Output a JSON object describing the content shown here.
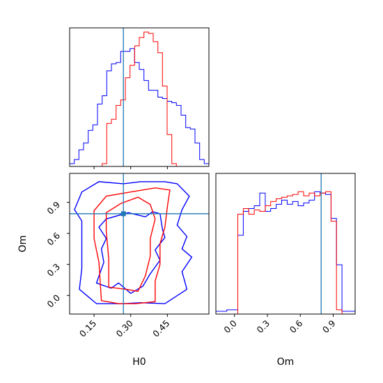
{
  "chart_data": {
    "type": "corner",
    "parameters": [
      "H0",
      "Om"
    ],
    "truth": {
      "H0": 0.27,
      "Om": 0.79,
      "color": "#1f77b4"
    },
    "series": [
      {
        "color": "#0000ff"
      },
      {
        "color": "#ff0000"
      }
    ],
    "panels": [
      {
        "id": "H0-marginal",
        "type": "histogram",
        "xlim": [
          0.05,
          0.62
        ],
        "xticks": [
          0.15,
          0.3,
          0.45
        ],
        "bin_edges": [
          0.05,
          0.069,
          0.088,
          0.107,
          0.126,
          0.145,
          0.164,
          0.183,
          0.202,
          0.221,
          0.24,
          0.259,
          0.278,
          0.297,
          0.316,
          0.335,
          0.354,
          0.373,
          0.392,
          0.411,
          0.43,
          0.449,
          0.468,
          0.487,
          0.506,
          0.525,
          0.544,
          0.563,
          0.582,
          0.601,
          0.62
        ],
        "ylim": [
          0,
          1.0
        ],
        "counts": [
          [
            0.02,
            0.05,
            0.12,
            0.17,
            0.26,
            0.3,
            0.45,
            0.51,
            0.69,
            0.74,
            0.75,
            0.83,
            0.83,
            0.85,
            0.75,
            0.7,
            0.62,
            0.55,
            0.55,
            0.5,
            0.49,
            0.47,
            0.46,
            0.44,
            0.37,
            0.28,
            0.27,
            0.17,
            0.05,
            0.02
          ],
          [
            0,
            0,
            0,
            0,
            0,
            0,
            0,
            0.02,
            0.31,
            0.34,
            0.44,
            0.48,
            0.64,
            0.73,
            0.87,
            0.93,
            0.97,
            0.96,
            0.9,
            0.82,
            0.58,
            0.23,
            0.02,
            0,
            0,
            0,
            0,
            0,
            0,
            0
          ]
        ]
      },
      {
        "id": "Om-marginal",
        "type": "histogram",
        "xlim": [
          -0.17,
          1.1
        ],
        "xticks": [
          0.0,
          0.3,
          0.6,
          0.9
        ],
        "bin_edges": [
          -0.17,
          -0.12,
          -0.07,
          -0.02,
          0.03,
          0.08,
          0.13,
          0.18,
          0.23,
          0.28,
          0.33,
          0.38,
          0.43,
          0.48,
          0.53,
          0.58,
          0.63,
          0.68,
          0.73,
          0.78,
          0.83,
          0.88,
          0.93,
          0.98,
          1.03,
          1.08,
          1.1
        ],
        "ylim": [
          0,
          1.0
        ],
        "counts": [
          [
            0.02,
            0.02,
            0.03,
            0.03,
            0.56,
            0.73,
            0.75,
            0.77,
            0.86,
            0.73,
            0.75,
            0.78,
            0.81,
            0.78,
            0.8,
            0.77,
            0.79,
            0.81,
            0.87,
            0.86,
            0.85,
            0.68,
            0.35,
            0.02,
            0.02,
            0.02
          ],
          [
            0,
            0,
            0,
            0,
            0.71,
            0.75,
            0.71,
            0.74,
            0.73,
            0.77,
            0.8,
            0.82,
            0.83,
            0.84,
            0.85,
            0.87,
            0.84,
            0.86,
            0.84,
            0.86,
            0.87,
            0.66,
            0.03,
            0,
            0,
            0
          ]
        ]
      },
      {
        "id": "H0-Om-2d",
        "type": "contour",
        "xlim": [
          0.05,
          0.62
        ],
        "ylim": [
          -0.18,
          1.18
        ],
        "xticks": [
          0.15,
          0.3,
          0.45
        ],
        "yticks": [
          0.0,
          0.3,
          0.6,
          0.9
        ],
        "contours": [
          {
            "series": 0,
            "points": [
              [
                0.09,
                0.06
              ],
              [
                0.1,
                0.26
              ],
              [
                0.1,
                0.72
              ],
              [
                0.07,
                0.83
              ],
              [
                0.1,
                1.0
              ],
              [
                0.17,
                1.1
              ],
              [
                0.27,
                1.08
              ],
              [
                0.34,
                1.1
              ],
              [
                0.44,
                1.1
              ],
              [
                0.49,
                1.08
              ],
              [
                0.54,
                0.96
              ],
              [
                0.51,
                0.83
              ],
              [
                0.49,
                0.68
              ],
              [
                0.53,
                0.57
              ],
              [
                0.51,
                0.45
              ],
              [
                0.55,
                0.37
              ],
              [
                0.51,
                0.23
              ],
              [
                0.53,
                0.06
              ],
              [
                0.44,
                -0.08
              ],
              [
                0.34,
                -0.07
              ],
              [
                0.27,
                -0.08
              ],
              [
                0.16,
                -0.08
              ],
              [
                0.09,
                0.06
              ]
            ]
          },
          {
            "series": 0,
            "points": [
              [
                0.16,
                0.12
              ],
              [
                0.19,
                0.32
              ],
              [
                0.18,
                0.45
              ],
              [
                0.2,
                0.55
              ],
              [
                0.17,
                0.66
              ],
              [
                0.2,
                0.74
              ],
              [
                0.29,
                0.8
              ],
              [
                0.36,
                0.76
              ],
              [
                0.39,
                0.81
              ],
              [
                0.42,
                0.79
              ],
              [
                0.43,
                0.64
              ],
              [
                0.44,
                0.56
              ],
              [
                0.4,
                0.44
              ],
              [
                0.42,
                0.34
              ],
              [
                0.38,
                0.21
              ],
              [
                0.35,
                0.09
              ],
              [
                0.3,
                0.02
              ],
              [
                0.25,
                0.12
              ],
              [
                0.22,
                0.07
              ],
              [
                0.16,
                0.12
              ]
            ]
          },
          {
            "series": 1,
            "points": [
              [
                0.18,
                -0.05
              ],
              [
                0.17,
                0.32
              ],
              [
                0.15,
                0.55
              ],
              [
                0.15,
                0.82
              ],
              [
                0.2,
                0.96
              ],
              [
                0.3,
                1.0
              ],
              [
                0.4,
                1.04
              ],
              [
                0.46,
                1.02
              ],
              [
                0.45,
                0.86
              ],
              [
                0.44,
                0.66
              ],
              [
                0.42,
                0.5
              ],
              [
                0.42,
                0.3
              ],
              [
                0.4,
                0.14
              ],
              [
                0.4,
                -0.06
              ],
              [
                0.32,
                -0.08
              ],
              [
                0.25,
                -0.08
              ],
              [
                0.18,
                -0.05
              ]
            ]
          },
          {
            "series": 1,
            "points": [
              [
                0.21,
                0.08
              ],
              [
                0.21,
                0.36
              ],
              [
                0.2,
                0.62
              ],
              [
                0.2,
                0.8
              ],
              [
                0.26,
                0.89
              ],
              [
                0.33,
                0.95
              ],
              [
                0.38,
                0.88
              ],
              [
                0.4,
                0.74
              ],
              [
                0.38,
                0.55
              ],
              [
                0.38,
                0.38
              ],
              [
                0.36,
                0.19
              ],
              [
                0.33,
                0.04
              ],
              [
                0.28,
                0.06
              ],
              [
                0.21,
                0.08
              ]
            ]
          }
        ]
      }
    ]
  }
}
